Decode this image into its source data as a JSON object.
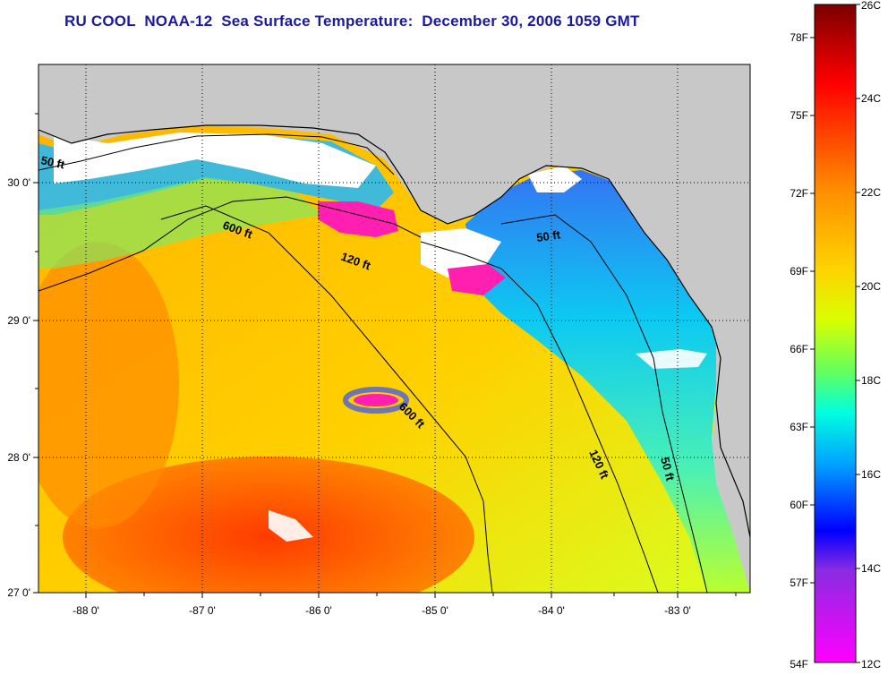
{
  "title": "RU COOL  NOAA-12  Sea Surface Temperature:  December 30, 2006 1059 GMT",
  "axes": {
    "lon_ticks": [
      "-88 0'",
      "-87 0'",
      "-86 0'",
      "-85 0'",
      "-84 0'",
      "-83 0'"
    ],
    "lat_ticks": [
      "30 0'",
      "29 0'",
      "28 0'",
      "27 0'"
    ]
  },
  "contours": {
    "labels": [
      "50 ft",
      "600 ft",
      "120 ft",
      "50 ft",
      "600 ft",
      "120 ft",
      "50 ft"
    ]
  },
  "colorbar": {
    "fahrenheit": [
      "78F",
      "75F",
      "72F",
      "69F",
      "66F",
      "63F",
      "60F",
      "57F",
      "54F"
    ],
    "celsius": [
      "26C",
      "24C",
      "22C",
      "20C",
      "18C",
      "16C",
      "14C",
      "12C"
    ],
    "colors": [
      "#7a0000",
      "#ff0000",
      "#ff8c00",
      "#ffd200",
      "#d8ff00",
      "#7fff50",
      "#00ffe0",
      "#00a0ff",
      "#0000ff",
      "#8a2be2",
      "#ff00ff"
    ]
  },
  "land_color": "#c8c8c8",
  "cloud_color": "#ffffff"
}
